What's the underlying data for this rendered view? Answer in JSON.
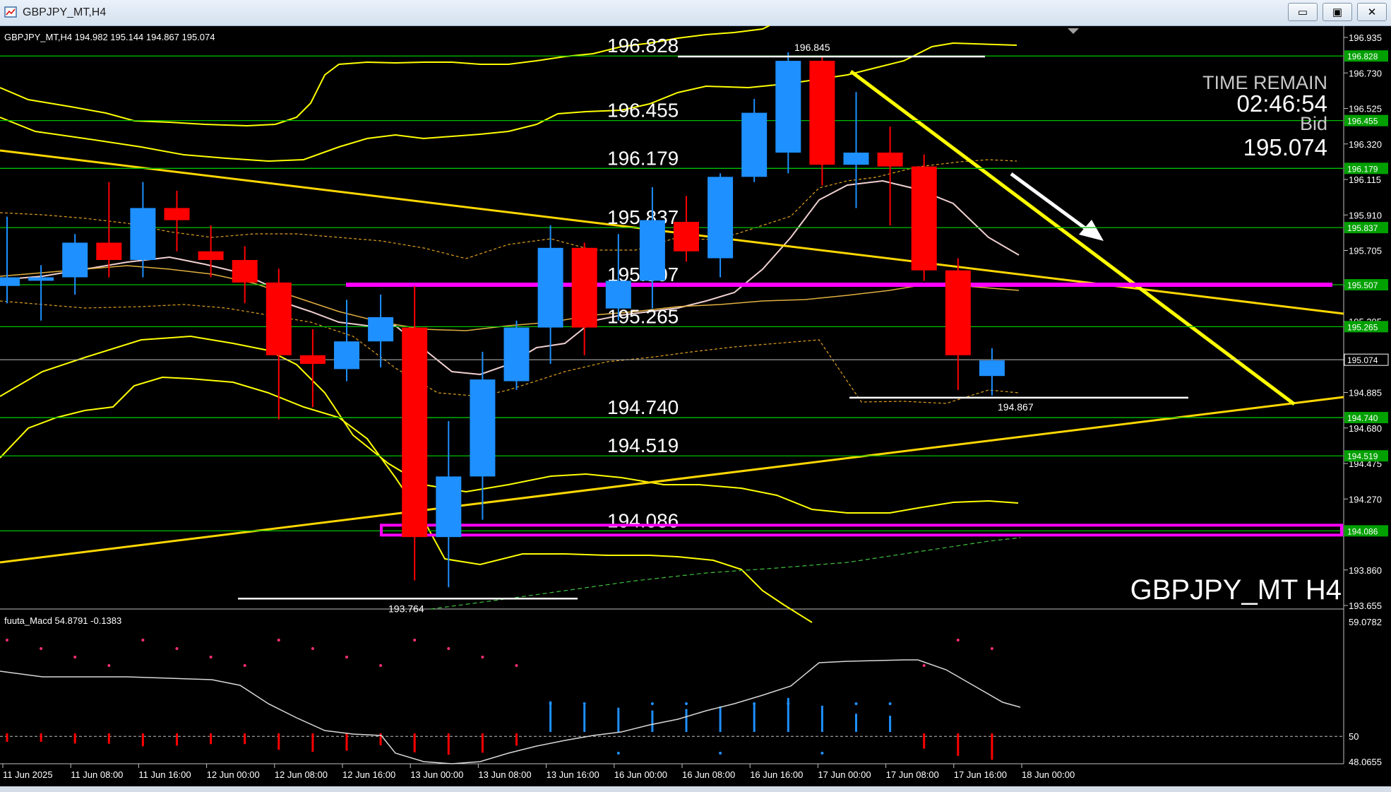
{
  "window": {
    "title": "GBPJPY_MT,H4",
    "minimize_icon": "minimize-icon",
    "restore_icon": "restore-icon",
    "close_icon": "close-icon"
  },
  "colors": {
    "background": "#000000",
    "bull": "#1e90ff",
    "bear": "#ff0000",
    "level_line": "#00c000",
    "level_tag": "#00a000",
    "trend": "#ffd700",
    "zone": "#ff00ff",
    "band": "#ffff00",
    "ma": "#f0d0d0"
  },
  "chart_data": {
    "type": "candlestick",
    "symbol_header": "GBPJPY_MT,H4  194.982 195.144 194.867 195.074",
    "watermark": "GBPJPY_MT H4",
    "time_remain": {
      "label": "TIME REMAIN",
      "time": "02:46:54",
      "bid_label": "Bid",
      "bid": "195.074"
    },
    "ylim": [
      193.655,
      196.935
    ],
    "y_ticks": [
      "196.935",
      "196.730",
      "196.525",
      "196.320",
      "196.115",
      "195.910",
      "195.705",
      "195.500",
      "195.295",
      "194.885",
      "194.680",
      "194.475",
      "194.270",
      "193.860",
      "193.655"
    ],
    "x_ticks": [
      "11 Jun 2025",
      "11 Jun 08:00",
      "11 Jun 16:00",
      "12 Jun 00:00",
      "12 Jun 08:00",
      "12 Jun 16:00",
      "13 Jun 00:00",
      "13 Jun 08:00",
      "13 Jun 16:00",
      "16 Jun 00:00",
      "16 Jun 08:00",
      "16 Jun 16:00",
      "17 Jun 00:00",
      "17 Jun 08:00",
      "17 Jun 16:00",
      "18 Jun 00:00"
    ],
    "candles": [
      {
        "o": 195.5,
        "h": 195.9,
        "l": 195.4,
        "c": 195.55
      },
      {
        "o": 195.53,
        "h": 195.62,
        "l": 195.3,
        "c": 195.55
      },
      {
        "o": 195.55,
        "h": 195.8,
        "l": 195.45,
        "c": 195.75
      },
      {
        "o": 195.75,
        "h": 196.1,
        "l": 195.55,
        "c": 195.65
      },
      {
        "o": 195.65,
        "h": 196.1,
        "l": 195.55,
        "c": 195.95
      },
      {
        "o": 195.95,
        "h": 196.05,
        "l": 195.7,
        "c": 195.88
      },
      {
        "o": 195.7,
        "h": 195.85,
        "l": 195.55,
        "c": 195.65
      },
      {
        "o": 195.65,
        "h": 195.73,
        "l": 195.4,
        "c": 195.52
      },
      {
        "o": 195.52,
        "h": 195.6,
        "l": 194.73,
        "c": 195.1
      },
      {
        "o": 195.1,
        "h": 195.25,
        "l": 194.8,
        "c": 195.05
      },
      {
        "o": 195.02,
        "h": 195.42,
        "l": 194.95,
        "c": 195.18
      },
      {
        "o": 195.18,
        "h": 195.45,
        "l": 195.03,
        "c": 195.32
      },
      {
        "o": 195.26,
        "h": 195.5,
        "l": 193.8,
        "c": 194.05
      },
      {
        "o": 194.05,
        "h": 194.72,
        "l": 193.76,
        "c": 194.4
      },
      {
        "o": 194.4,
        "h": 195.12,
        "l": 194.15,
        "c": 194.96
      },
      {
        "o": 194.95,
        "h": 195.3,
        "l": 194.9,
        "c": 195.26
      },
      {
        "o": 195.26,
        "h": 195.85,
        "l": 195.05,
        "c": 195.72
      },
      {
        "o": 195.72,
        "h": 195.75,
        "l": 195.1,
        "c": 195.26
      },
      {
        "o": 195.37,
        "h": 195.8,
        "l": 195.3,
        "c": 195.53
      },
      {
        "o": 195.53,
        "h": 196.07,
        "l": 195.37,
        "c": 195.88
      },
      {
        "o": 195.87,
        "h": 196.02,
        "l": 195.64,
        "c": 195.7
      },
      {
        "o": 195.66,
        "h": 196.15,
        "l": 195.55,
        "c": 196.13
      },
      {
        "o": 196.13,
        "h": 196.58,
        "l": 196.1,
        "c": 196.5
      },
      {
        "o": 196.27,
        "h": 196.85,
        "l": 196.15,
        "c": 196.8
      },
      {
        "o": 196.8,
        "h": 196.82,
        "l": 196.08,
        "c": 196.2
      },
      {
        "o": 196.2,
        "h": 196.62,
        "l": 195.95,
        "c": 196.27
      },
      {
        "o": 196.27,
        "h": 196.42,
        "l": 195.85,
        "c": 196.19
      },
      {
        "o": 196.19,
        "h": 196.26,
        "l": 195.53,
        "c": 195.59
      },
      {
        "o": 195.59,
        "h": 195.66,
        "l": 194.9,
        "c": 195.1
      },
      {
        "o": 194.98,
        "h": 195.14,
        "l": 194.867,
        "c": 195.07
      }
    ],
    "levels": [
      "196.828",
      "196.455",
      "196.179",
      "195.837",
      "195.507",
      "195.265",
      "194.740",
      "194.519",
      "194.086"
    ],
    "swing_labels": {
      "high": "196.845",
      "low_current": "194.867",
      "low_prior": "193.764"
    },
    "macd": {
      "label": "fuuta_Macd 54.8791   -0.1383",
      "ylim": [
        48.0655,
        59.0782
      ],
      "top_tick": "59.0782",
      "mid_tick": "50",
      "bottom_tick": "48.0655"
    }
  }
}
